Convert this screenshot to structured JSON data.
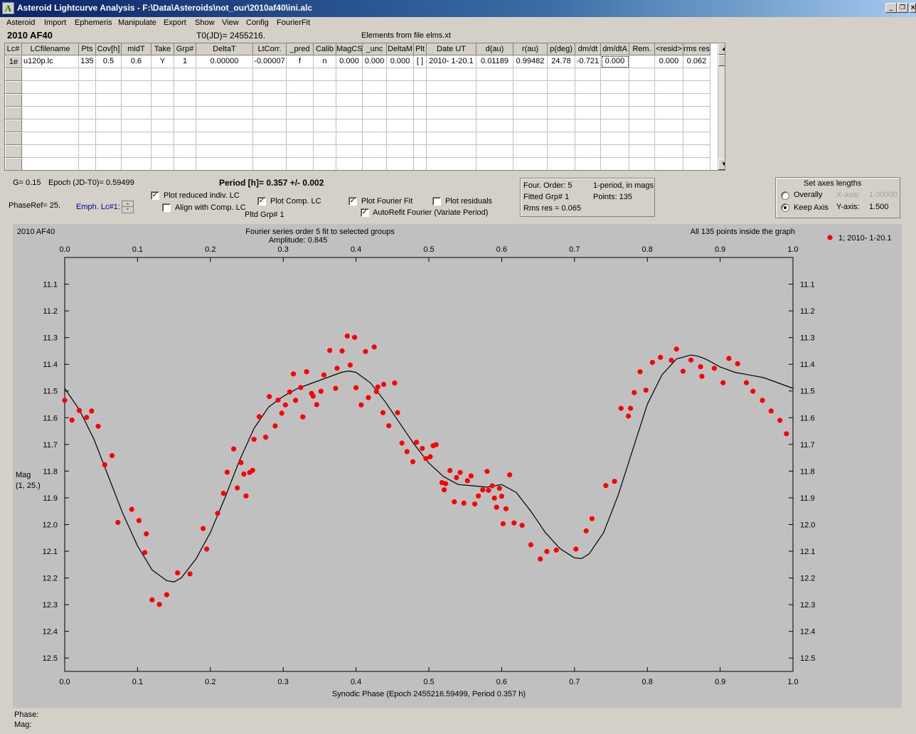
{
  "window": {
    "title": "Asteroid Lightcurve Analysis - F:\\Data\\Asteroids\\not_our\\2010af40\\ini.alc",
    "app_icon": "A",
    "min_glyph": "_",
    "restore_glyph": "❐",
    "close_glyph": "×"
  },
  "menu": [
    "Asteroid",
    "Import",
    "Ephemeris",
    "Manipulate",
    "Export",
    "Show",
    "View",
    "Config",
    "FourierFit"
  ],
  "header": {
    "object": "2010 AF40",
    "t0": "T0(JD)= 2455216.",
    "elements": "Elements from file elms.xt"
  },
  "grid": {
    "columns": [
      "Lc#",
      "LCfilename",
      "Pts",
      "Cov[h]",
      "midT",
      "Take",
      "Grp#",
      "DeltaT",
      "LtCorr.",
      "_pred",
      "Calib",
      "MagCS",
      "_unc",
      "DeltaM",
      "Plt",
      "Date UT",
      "d(au)",
      "r(au)",
      "p(deg)",
      "dm/dt",
      "dm/dtA",
      "Rem.",
      "<resid>",
      "rms res"
    ],
    "rows": [
      [
        "1e",
        "u120p.lc",
        "135",
        "0.5",
        "0.6",
        "Y",
        "1",
        "0.00000",
        "-0.00007",
        "f",
        "n",
        "0.000",
        "0.000",
        "0.000",
        "[ ]",
        "2010- 1-20.1",
        "0.01189",
        "0.99482",
        "24.78",
        "-0.721",
        "0.000",
        "",
        "0.000",
        "0.062"
      ]
    ],
    "scroll_up": "▲",
    "scroll_down": "▼"
  },
  "info": {
    "g": "G= 0.15",
    "epoch": "Epoch (JD-T0)= 0.59499",
    "period": "Period [h]= 0.357 +/- 0.002",
    "phaseref": "PhaseRef= 25.",
    "emph": "Emph. Lc#1:",
    "pltd_grp": "Pltd Grp#  1",
    "four_order": "Four. Order:  5",
    "one_period": "1-period, in mags",
    "fitted_grp": "Fitted Grp# 1",
    "points": "Points: 135",
    "rms": "Rms res     = 0.065"
  },
  "options": {
    "plot_reduced": {
      "label": "Plot reduced indiv. LC",
      "checked": true
    },
    "align_comp": {
      "label": "Align with Comp. LC",
      "checked": false
    },
    "plot_comp": {
      "label": "Plot Comp. LC",
      "checked": true
    },
    "plot_fourier": {
      "label": "Plot Fourier Fit",
      "checked": true
    },
    "plot_residuals": {
      "label": "Plot residuals",
      "checked": false
    },
    "autorefit": {
      "label": "AutoRefit Fourier (Variate Period)",
      "checked": true
    },
    "check_glyph": "✓"
  },
  "axes_box": {
    "title": "Set axes lengths",
    "overally": "Overally",
    "keep_axis": "Keep Axis",
    "selected": "keep_axis",
    "x_axis_label": "X-axis:",
    "x_axis_value": "1.00000",
    "y_axis_label": "Y-axis:",
    "y_axis_value": "1.500"
  },
  "status": {
    "phase_label": "Phase:",
    "mag_label": "Mag:"
  },
  "chart_data": {
    "type": "scatter",
    "title": "Fourier series order 5 fit to selected groups",
    "subtitle": "Amplitude: 0.845",
    "object_label": "2010 AF40",
    "points_note": "All 135 points inside the graph",
    "xlabel": "Synodic Phase (Epoch 2455216.59499, Period 0.357 h)",
    "ylabel": "Mag",
    "ylabel2": "(1, 25.)",
    "xlim": [
      0,
      1
    ],
    "ylim": [
      11.0,
      12.55
    ],
    "y_inverted": true,
    "x_ticks": [
      "0.0",
      "0.1",
      "0.2",
      "0.3",
      "0.4",
      "0.5",
      "0.6",
      "0.7",
      "0.8",
      "0.9",
      "1.0"
    ],
    "y_ticks": [
      "11.1",
      "11.2",
      "11.3",
      "11.4",
      "11.5",
      "11.6",
      "11.7",
      "11.8",
      "11.9",
      "12.0",
      "12.1",
      "12.2",
      "12.3",
      "12.4",
      "12.5"
    ],
    "legend": "1; 2010- 1-20.1",
    "legend_position": "top-right",
    "colors": {
      "points": "#ff0000",
      "fit": "#000000",
      "background": "#c0c0c0"
    },
    "series": [
      {
        "name": "1; 2010- 1-20.1",
        "x": [
          0.0,
          0.01,
          0.02,
          0.03,
          0.037,
          0.046,
          0.055,
          0.065,
          0.073,
          0.092,
          0.102,
          0.11,
          0.112,
          0.12,
          0.13,
          0.14,
          0.155,
          0.172,
          0.19,
          0.195,
          0.21,
          0.218,
          0.223,
          0.232,
          0.237,
          0.242,
          0.246,
          0.249,
          0.254,
          0.258,
          0.26,
          0.267,
          0.276,
          0.281,
          0.289,
          0.293,
          0.298,
          0.303,
          0.309,
          0.314,
          0.317,
          0.324,
          0.327,
          0.332,
          0.339,
          0.341,
          0.346,
          0.352,
          0.356,
          0.364,
          0.372,
          0.374,
          0.381,
          0.388,
          0.392,
          0.398,
          0.4,
          0.407,
          0.413,
          0.417,
          0.425,
          0.428,
          0.43,
          0.437,
          0.438,
          0.445,
          0.453,
          0.457,
          0.463,
          0.47,
          0.478,
          0.483,
          0.491,
          0.496,
          0.502,
          0.506,
          0.51,
          0.518,
          0.521,
          0.523,
          0.529,
          0.535,
          0.538,
          0.543,
          0.548,
          0.553,
          0.558,
          0.563,
          0.568,
          0.574,
          0.58,
          0.582,
          0.587,
          0.59,
          0.593,
          0.597,
          0.6,
          0.602,
          0.606,
          0.611,
          0.617,
          0.628,
          0.64,
          0.653,
          0.662,
          0.675,
          0.702,
          0.716,
          0.724,
          0.743,
          0.755,
          0.764,
          0.774,
          0.777,
          0.782,
          0.79,
          0.798,
          0.807,
          0.818,
          0.833,
          0.84,
          0.849,
          0.86,
          0.873,
          0.875,
          0.892,
          0.904,
          0.912,
          0.924,
          0.936,
          0.945,
          0.958,
          0.97,
          0.982,
          0.991
        ]
      }
    ],
    "y_values": [
      11.535,
      11.609,
      11.573,
      11.599,
      11.575,
      11.632,
      11.776,
      11.742,
      11.992,
      11.943,
      11.985,
      12.105,
      12.035,
      12.282,
      12.299,
      12.263,
      12.181,
      12.185,
      12.015,
      12.092,
      11.958,
      11.883,
      11.804,
      11.717,
      11.863,
      11.768,
      11.811,
      11.893,
      11.805,
      11.797,
      11.681,
      11.596,
      11.673,
      11.521,
      11.631,
      11.534,
      11.583,
      11.552,
      11.504,
      11.436,
      11.535,
      11.487,
      11.597,
      11.428,
      11.509,
      11.519,
      11.551,
      11.501,
      11.44,
      11.348,
      11.49,
      11.415,
      11.35,
      11.294,
      11.403,
      11.299,
      11.488,
      11.552,
      11.352,
      11.525,
      11.335,
      11.502,
      11.485,
      11.581,
      11.475,
      11.63,
      11.47,
      11.581,
      11.695,
      11.727,
      11.765,
      11.692,
      11.715,
      11.753,
      11.746,
      11.705,
      11.701,
      11.843,
      11.87,
      11.847,
      11.798,
      11.915,
      11.824,
      11.805,
      11.92,
      11.836,
      11.818,
      11.923,
      11.893,
      11.87,
      11.801,
      11.872,
      11.855,
      11.901,
      11.935,
      11.864,
      11.894,
      11.997,
      11.941,
      11.814,
      11.994,
      12.003,
      12.076,
      12.129,
      12.101,
      12.096,
      12.092,
      12.024,
      11.978,
      11.854,
      11.838,
      11.565,
      11.594,
      11.565,
      11.506,
      11.428,
      11.497,
      11.393,
      11.374,
      11.385,
      11.343,
      11.426,
      11.384,
      11.409,
      11.445,
      11.415,
      11.469,
      11.378,
      11.398,
      11.469,
      11.501,
      11.535,
      11.575,
      11.61,
      11.66
    ],
    "fit": {
      "x": [
        0.0,
        0.02,
        0.04,
        0.06,
        0.08,
        0.1,
        0.12,
        0.14,
        0.15,
        0.16,
        0.18,
        0.2,
        0.22,
        0.24,
        0.26,
        0.28,
        0.3,
        0.32,
        0.34,
        0.36,
        0.38,
        0.39,
        0.4,
        0.42,
        0.44,
        0.46,
        0.48,
        0.5,
        0.52,
        0.54,
        0.56,
        0.58,
        0.6,
        0.62,
        0.64,
        0.66,
        0.68,
        0.7,
        0.71,
        0.72,
        0.74,
        0.76,
        0.78,
        0.8,
        0.82,
        0.84,
        0.86,
        0.87,
        0.88,
        0.9,
        0.92,
        0.94,
        0.96,
        0.98,
        1.0
      ],
      "y": [
        11.49,
        11.57,
        11.68,
        11.82,
        11.96,
        12.08,
        12.17,
        12.21,
        12.215,
        12.2,
        12.13,
        12.03,
        11.9,
        11.76,
        11.64,
        11.56,
        11.52,
        11.49,
        11.47,
        11.45,
        11.43,
        11.425,
        11.43,
        11.47,
        11.54,
        11.62,
        11.7,
        11.77,
        11.82,
        11.85,
        11.855,
        11.86,
        11.85,
        11.88,
        11.95,
        12.03,
        12.09,
        12.125,
        12.127,
        12.11,
        12.03,
        11.89,
        11.72,
        11.55,
        11.44,
        11.38,
        11.365,
        11.37,
        11.38,
        11.41,
        11.43,
        11.44,
        11.45,
        11.47,
        11.49
      ]
    }
  }
}
